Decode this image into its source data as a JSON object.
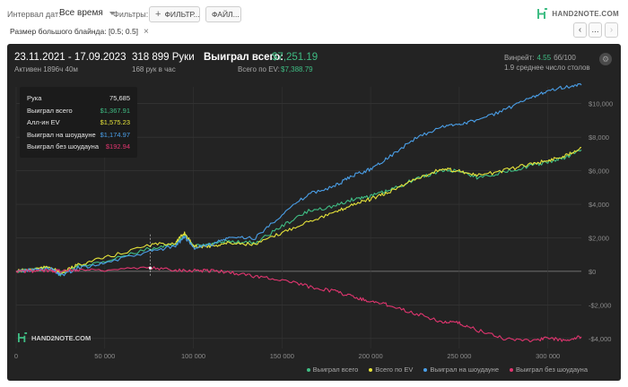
{
  "toolbar": {
    "date_interval_label": "Интервал дат:",
    "date_interval_value": "Все время",
    "filters_label": "Фильтры:",
    "filter_button": "ФИЛЬТР...",
    "file_button": "ФАЙЛ..."
  },
  "brand": {
    "name": "HAND2NOTE.COM"
  },
  "chip": {
    "label": "Размер большого блайнда: [0.5; 0.5]"
  },
  "nav": {
    "more": "...",
    "next": "›",
    "prev": "‹"
  },
  "summary": {
    "date_range": "23.11.2021 - 17.09.2023",
    "active": "Активен 1896ч 40м",
    "hands": "318 899 Руки",
    "hands_per_hour": "168 рук в час",
    "won_total_label": "Выиграл всего:",
    "won_total_value": "$7,251.19",
    "ev_total_label": "Всего по EV:",
    "ev_total_value": "$7,388.79",
    "winrate_label": "Винрейт:",
    "winrate_value": "4.55",
    "winrate_unit": "бб/100",
    "avg_tables": "1.9 среднее число столов"
  },
  "tooltip": [
    {
      "label": "Рука",
      "value": "75,685",
      "color": "#e6e6e6"
    },
    {
      "label": "Выиграл всего",
      "value": "$1,367.91",
      "color": "#3fbd84"
    },
    {
      "label": "Алл-ин EV",
      "value": "$1,575.23",
      "color": "#e6e33a"
    },
    {
      "label": "Выиграл на шоудауне",
      "value": "$1,174.97",
      "color": "#4a9fe8"
    },
    {
      "label": "Выиграл без шоудауна",
      "value": "$192.94",
      "color": "#e0356f"
    }
  ],
  "chart_data": {
    "type": "line",
    "x_ticks": [
      0,
      50000,
      100000,
      150000,
      200000,
      250000,
      300000
    ],
    "x_tick_labels": [
      "0",
      "50 000",
      "100 000",
      "150 000",
      "200 000",
      "250 000",
      "300 000"
    ],
    "y_ticks": [
      -4000,
      -2000,
      0,
      2000,
      4000,
      6000,
      8000,
      10000
    ],
    "y_tick_labels": [
      "-$4,000",
      "-$2,000",
      "$0",
      "$2,000",
      "$4,000",
      "$6,000",
      "$8,000",
      "$10,000"
    ],
    "xlim": [
      0,
      318899
    ],
    "ylim": [
      -4600,
      11000
    ],
    "grid": true,
    "legend_position": "bottom-right",
    "series": [
      {
        "name": "Выиграл всего",
        "color": "#3fbd84",
        "x": [
          0,
          10000,
          20000,
          25000,
          35000,
          50000,
          75685,
          90000,
          95000,
          100000,
          110000,
          120000,
          135000,
          150000,
          165000,
          180000,
          190000,
          200000,
          210000,
          225000,
          240000,
          250000,
          260000,
          275000,
          290000,
          300000,
          310000,
          318899
        ],
        "y": [
          0,
          100,
          200,
          -200,
          300,
          600,
          1368,
          1600,
          2200,
          1500,
          1600,
          1800,
          1700,
          2700,
          3600,
          3900,
          4300,
          4500,
          4800,
          5500,
          6000,
          6000,
          5600,
          5900,
          6300,
          6500,
          6800,
          7251
        ]
      },
      {
        "name": "Всего по EV",
        "color": "#e6e33a",
        "x": [
          0,
          10000,
          20000,
          25000,
          35000,
          50000,
          75685,
          90000,
          95000,
          100000,
          110000,
          120000,
          135000,
          150000,
          165000,
          180000,
          190000,
          200000,
          210000,
          225000,
          240000,
          250000,
          260000,
          275000,
          290000,
          300000,
          310000,
          318899
        ],
        "y": [
          0,
          150,
          250,
          -150,
          400,
          800,
          1575,
          1700,
          2300,
          1500,
          1500,
          1700,
          1600,
          2300,
          3000,
          3500,
          4000,
          4300,
          4700,
          5500,
          6100,
          6000,
          5700,
          6000,
          6400,
          6600,
          6900,
          7389
        ]
      },
      {
        "name": "Выиграл на шоудауне",
        "color": "#4a9fe8",
        "x": [
          0,
          10000,
          20000,
          25000,
          35000,
          50000,
          75685,
          90000,
          95000,
          100000,
          110000,
          120000,
          135000,
          150000,
          165000,
          180000,
          190000,
          200000,
          210000,
          225000,
          240000,
          250000,
          260000,
          275000,
          290000,
          300000,
          310000,
          318899
        ],
        "y": [
          0,
          80,
          150,
          -250,
          200,
          500,
          1175,
          1500,
          2100,
          1400,
          1600,
          2000,
          2000,
          3400,
          4600,
          5100,
          5700,
          6100,
          6800,
          7900,
          8600,
          8800,
          9000,
          9600,
          10300,
          10800,
          11000,
          11100
        ]
      },
      {
        "name": "Выиграл без шоудауна",
        "color": "#e0356f",
        "x": [
          0,
          10000,
          20000,
          25000,
          35000,
          50000,
          75685,
          90000,
          100000,
          110000,
          120000,
          135000,
          150000,
          165000,
          180000,
          190000,
          200000,
          210000,
          225000,
          240000,
          250000,
          260000,
          275000,
          290000,
          300000,
          310000,
          318899
        ],
        "y": [
          0,
          20,
          50,
          30,
          100,
          100,
          193,
          100,
          50,
          50,
          -50,
          -300,
          -500,
          -900,
          -1200,
          -1500,
          -1800,
          -2000,
          -2500,
          -3000,
          -3100,
          -3500,
          -4000,
          -4100,
          -4000,
          -4100,
          -3900
        ]
      }
    ]
  }
}
